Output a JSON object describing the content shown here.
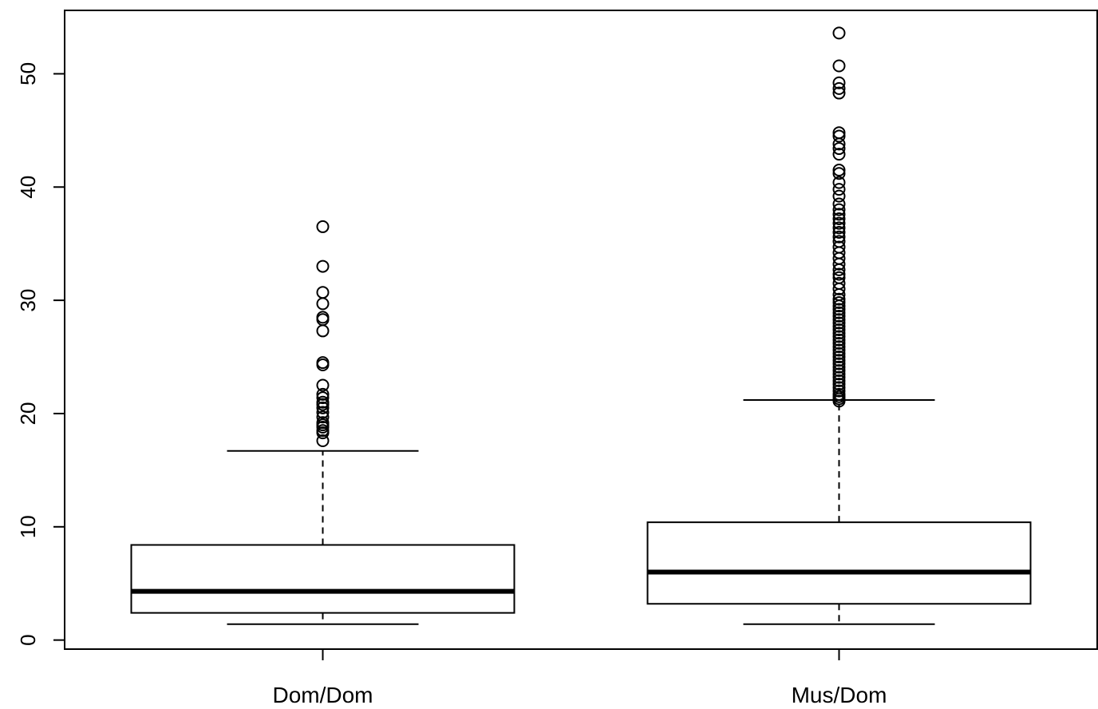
{
  "chart_data": {
    "type": "boxplot",
    "title": "",
    "xlabel": "",
    "ylabel": "",
    "ylim": [
      -0.8,
      55.6
    ],
    "yticks": [
      0,
      10,
      20,
      30,
      40,
      50
    ],
    "grid": false,
    "legend": "none",
    "categories": [
      "Dom/Dom",
      "Mus/Dom"
    ],
    "boxes": [
      {
        "name": "Dom/Dom",
        "whisker_low": 1.4,
        "q1": 2.4,
        "median": 4.3,
        "q3": 8.4,
        "whisker_high": 16.7,
        "outliers": [
          17.6,
          18.3,
          18.5,
          18.8,
          19.0,
          19.2,
          19.7,
          20.1,
          20.5,
          20.8,
          21.0,
          21.4,
          21.7,
          22.5,
          24.3,
          24.5,
          27.3,
          28.3,
          28.5,
          29.7,
          30.7,
          33.0,
          36.5
        ]
      },
      {
        "name": "Mus/Dom",
        "whisker_low": 1.4,
        "q1": 3.2,
        "median": 6.0,
        "q3": 10.4,
        "whisker_high": 21.2,
        "outliers": [
          21.1,
          21.3,
          21.5,
          21.7,
          22.0,
          22.3,
          22.6,
          22.9,
          23.2,
          23.5,
          23.8,
          24.1,
          24.4,
          24.7,
          25.0,
          25.3,
          25.6,
          25.9,
          26.2,
          26.5,
          26.8,
          27.1,
          27.4,
          27.7,
          28.0,
          28.3,
          28.6,
          28.9,
          29.2,
          29.5,
          29.8,
          30.1,
          30.5,
          31.0,
          31.5,
          32.0,
          32.3,
          32.7,
          33.2,
          33.7,
          34.2,
          34.7,
          35.2,
          35.6,
          36.0,
          36.4,
          36.8,
          37.2,
          37.6,
          38.0,
          38.5,
          39.2,
          39.8,
          40.4,
          41.2,
          41.5,
          42.9,
          43.4,
          43.8,
          44.5,
          44.8,
          48.3,
          48.7,
          49.2,
          50.7,
          53.6
        ]
      }
    ]
  }
}
